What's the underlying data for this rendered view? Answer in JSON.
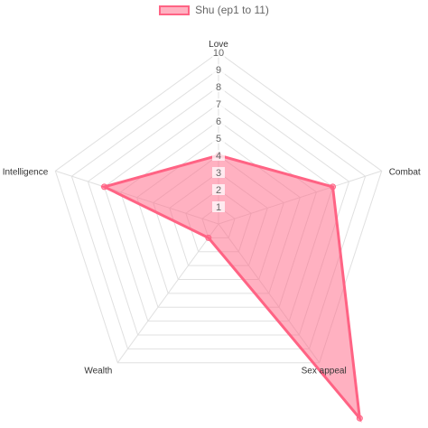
{
  "legend": {
    "label": "Shu (ep1 to 11)"
  },
  "colors": {
    "fill": "rgba(255,99,132,0.5)",
    "stroke": "#ff6384",
    "grid": "#e0e0e0",
    "text": "#666666"
  },
  "chart_data": {
    "type": "radar",
    "title": "",
    "axes": [
      "Love",
      "Combat",
      "Sex appeal",
      "Wealth",
      "Intelligence"
    ],
    "ticks": [
      "1",
      "2",
      "3",
      "4",
      "5",
      "6",
      "7",
      "8",
      "9",
      "10"
    ],
    "range": [
      0,
      10
    ],
    "series": [
      {
        "name": "Shu (ep1 to 11)",
        "values": [
          4,
          7,
          14,
          1,
          7
        ]
      }
    ],
    "legend_position": "top"
  }
}
